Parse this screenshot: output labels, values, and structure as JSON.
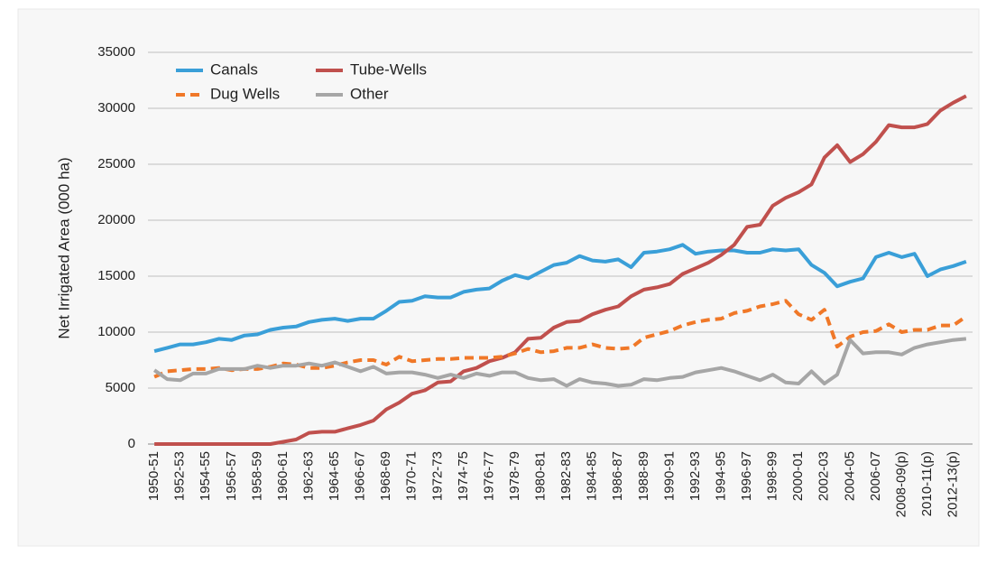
{
  "chart_data": {
    "type": "line",
    "y_label": "Net Irrigated Area (000 ha)",
    "categories": [
      "1950-51",
      null,
      "1952-53",
      null,
      "1954-55",
      null,
      "1956-57",
      null,
      "1958-59",
      null,
      "1960-61",
      null,
      "1962-63",
      null,
      "1964-65",
      null,
      "1966-67",
      null,
      "1968-69",
      null,
      "1970-71",
      null,
      "1972-73",
      null,
      "1974-75",
      null,
      "1976-77",
      null,
      "1978-79",
      null,
      "1980-81",
      null,
      "1982-83",
      null,
      "1984-85",
      null,
      "1986-87",
      null,
      "1988-89",
      null,
      "1990-91",
      null,
      "1992-93",
      null,
      "1994-95",
      null,
      "1996-97",
      null,
      "1998-99",
      null,
      "2000-01",
      null,
      "2002-03",
      null,
      "2004-05",
      null,
      "2006-07",
      null,
      "2008-09(p)",
      null,
      "2010-11(p)",
      null,
      "2012-13(p)",
      null
    ],
    "series": [
      {
        "name": "Canals",
        "color": "#3a9fd8",
        "dashed": false,
        "values": [
          8300,
          8600,
          8900,
          8900,
          9100,
          9400,
          9300,
          9700,
          9800,
          10200,
          10400,
          10500,
          10900,
          11100,
          11200,
          11000,
          11200,
          11200,
          11900,
          12700,
          12800,
          13200,
          13100,
          13100,
          13600,
          13800,
          13900,
          14600,
          15100,
          14800,
          15400,
          16000,
          16200,
          16800,
          16400,
          16300,
          16500,
          15800,
          17100,
          17200,
          17400,
          17800,
          17000,
          17200,
          17300,
          17300,
          17100,
          17100,
          17400,
          17300,
          17400,
          16000,
          15300,
          14100,
          14500,
          14800,
          16700,
          17100,
          16700,
          17000,
          15000,
          15600,
          15900,
          16300
        ]
      },
      {
        "name": "Tube-Wells",
        "color": "#c0504d",
        "dashed": false,
        "values": [
          0,
          0,
          0,
          0,
          0,
          0,
          0,
          0,
          0,
          0,
          200,
          400,
          1000,
          1100,
          1100,
          1400,
          1700,
          2100,
          3100,
          3700,
          4500,
          4800,
          5500,
          5600,
          6500,
          6800,
          7400,
          7700,
          8200,
          9400,
          9500,
          10400,
          10900,
          11000,
          11600,
          12000,
          12300,
          13200,
          13800,
          14000,
          14300,
          15200,
          15700,
          16200,
          16900,
          17800,
          19400,
          19600,
          21300,
          22000,
          22500,
          23200,
          25600,
          26700,
          25200,
          25900,
          27000,
          28500,
          28300,
          28300,
          28600,
          29800,
          30500,
          31100
        ]
      },
      {
        "name": "Dug Wells",
        "color": "#f07828",
        "dashed": true,
        "values": [
          6000,
          6500,
          6600,
          6700,
          6700,
          6800,
          6600,
          6700,
          6700,
          6900,
          7200,
          7100,
          6800,
          6800,
          7000,
          7300,
          7500,
          7500,
          7100,
          7800,
          7400,
          7500,
          7600,
          7600,
          7700,
          7700,
          7700,
          7800,
          8100,
          8500,
          8200,
          8300,
          8600,
          8600,
          8900,
          8600,
          8500,
          8600,
          9500,
          9800,
          10100,
          10600,
          10900,
          11100,
          11200,
          11700,
          11900,
          12300,
          12500,
          12800,
          11600,
          11100,
          12000,
          8700,
          9600,
          10000,
          10100,
          10700,
          10000,
          10200,
          10200,
          10600,
          10600,
          11400
        ]
      },
      {
        "name": "Other",
        "color": "#a6a6a6",
        "dashed": false,
        "values": [
          6600,
          5800,
          5700,
          6300,
          6300,
          6700,
          6700,
          6700,
          7000,
          6800,
          7000,
          7000,
          7200,
          7000,
          7300,
          6900,
          6500,
          6900,
          6300,
          6400,
          6400,
          6200,
          5900,
          6200,
          5900,
          6300,
          6100,
          6400,
          6400,
          5900,
          5700,
          5800,
          5200,
          5800,
          5500,
          5400,
          5200,
          5300,
          5800,
          5700,
          5900,
          6000,
          6400,
          6600,
          6800,
          6500,
          6100,
          5700,
          6200,
          5500,
          5400,
          6500,
          5400,
          6200,
          9300,
          8100,
          8200,
          8200,
          8000,
          8600,
          8900,
          9100,
          9300,
          9400
        ]
      }
    ],
    "ylim": [
      0,
      35000
    ],
    "yticks": [
      0,
      5000,
      10000,
      15000,
      20000,
      25000,
      30000,
      35000
    ],
    "grid": true,
    "legend": "top-left"
  }
}
